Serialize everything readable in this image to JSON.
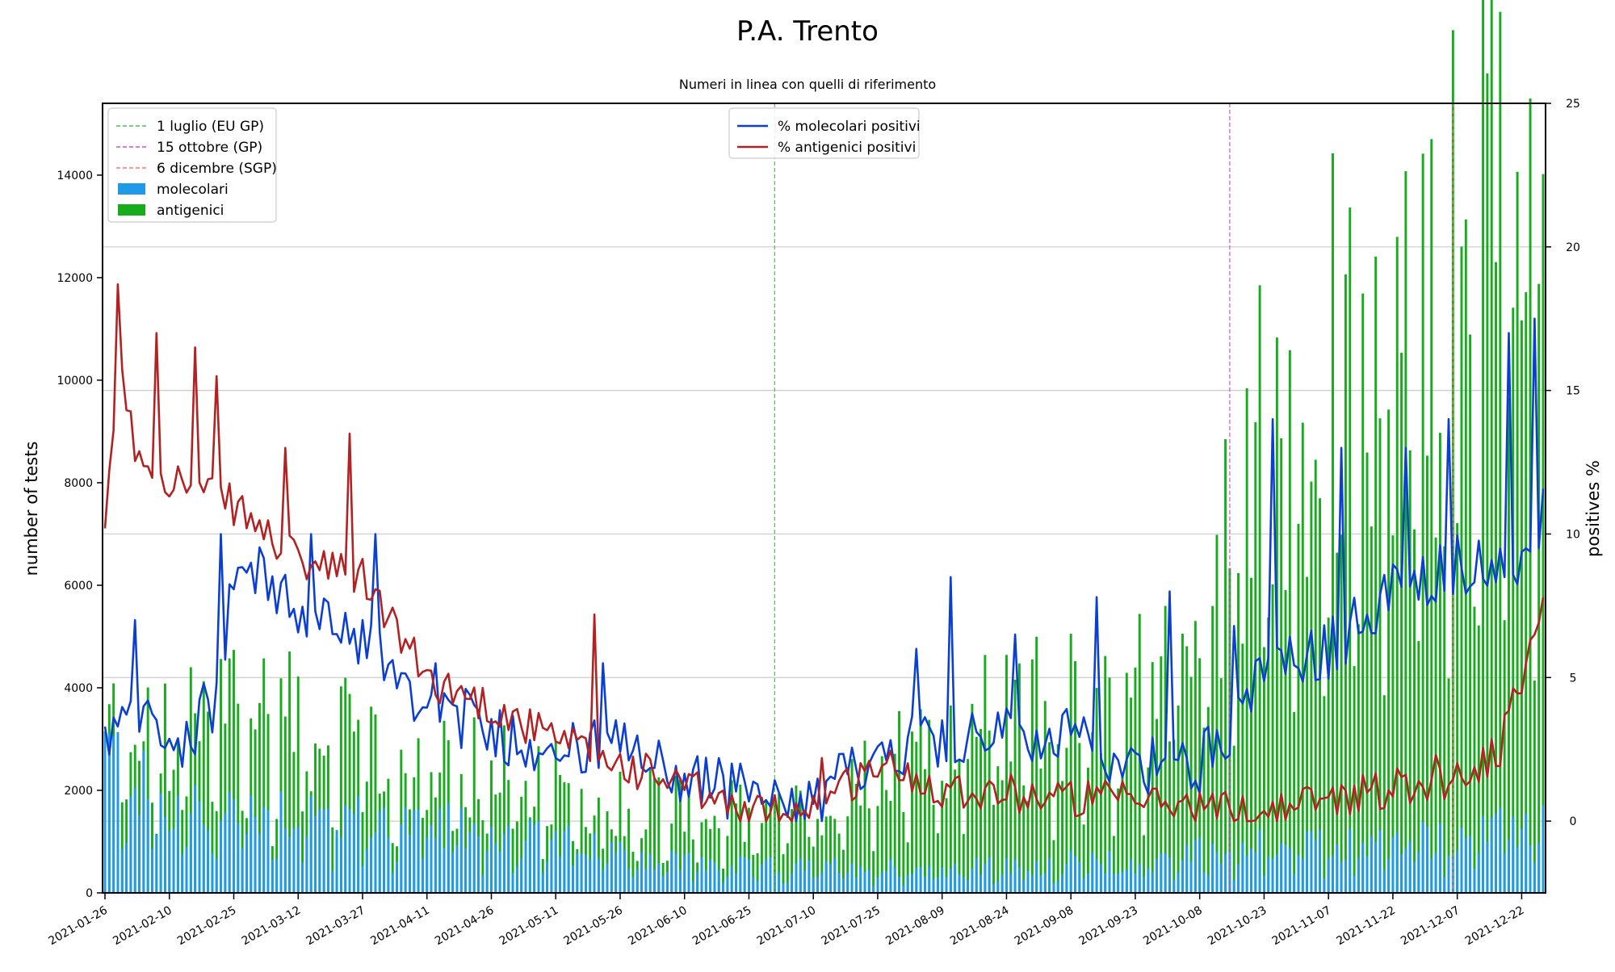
{
  "chart_data": {
    "type": "bar+line",
    "title": "P.A. Trento",
    "subtitle": "Numeri in linea con quelli di riferimento",
    "ylabel": "number of tests",
    "y2label": "positives %",
    "ylim": [
      0,
      15400
    ],
    "y2lim": [
      -2.5,
      25
    ],
    "yticks": [
      "0",
      "2000",
      "4000",
      "6000",
      "8000",
      "10000",
      "12000",
      "14000"
    ],
    "y2ticks": [
      "0",
      "5",
      "10",
      "15",
      "20",
      "25"
    ],
    "x_start": "2021-01-26",
    "x_end": "2021-12-27",
    "xticks": [
      "2021-01-26",
      "2021-02-10",
      "2021-02-25",
      "2021-03-12",
      "2021-03-27",
      "2021-04-11",
      "2021-04-26",
      "2021-05-11",
      "2021-05-26",
      "2021-06-10",
      "2021-06-25",
      "2021-07-10",
      "2021-07-25",
      "2021-08-09",
      "2021-08-24",
      "2021-09-08",
      "2021-09-23",
      "2021-10-08",
      "2021-10-23",
      "2021-11-07",
      "2021-11-22",
      "2021-12-07",
      "2021-12-22"
    ],
    "grid": "horizontal",
    "legend_left": {
      "placement": "top-left",
      "entries": [
        {
          "label": "1 luglio (EU GP)",
          "kind": "dashed",
          "color": "#55bb55"
        },
        {
          "label": "15 ottobre (GP)",
          "kind": "dashed",
          "color": "#cc55cc"
        },
        {
          "label": "6 dicembre (SGP)",
          "kind": "dashed",
          "color": "#ff7777"
        },
        {
          "label": "molecolari",
          "kind": "patch",
          "color": "#1f9ae8"
        },
        {
          "label": "antigenici",
          "kind": "patch",
          "color": "#16ac1c"
        }
      ]
    },
    "legend_center": {
      "placement": "top-center",
      "entries": [
        {
          "label": "% molecolari positivi",
          "kind": "line",
          "color": "#0b3fd1"
        },
        {
          "label": "% antigenici positivi",
          "kind": "line",
          "color": "#b22222"
        }
      ]
    },
    "vlines": [
      {
        "date": "2021-07-01",
        "color": "#55bb55"
      },
      {
        "date": "2021-10-15",
        "color": "#cc55cc"
      },
      {
        "date": "2021-12-06",
        "color": "#ff7777"
      }
    ],
    "colors": {
      "molecolari": "#1f9ae8",
      "antigenici": "#16ac1c",
      "mol_pos": "#0b3fd1",
      "ant_pos": "#b22222"
    },
    "series_anchors": {
      "molecolari_tests": [
        [
          "2021-01-26",
          2800
        ],
        [
          "2021-02-10",
          1500
        ],
        [
          "2021-02-25",
          1700
        ],
        [
          "2021-03-12",
          1600
        ],
        [
          "2021-03-27",
          1400
        ],
        [
          "2021-04-11",
          1300
        ],
        [
          "2021-04-26",
          1200
        ],
        [
          "2021-05-11",
          1000
        ],
        [
          "2021-05-26",
          800
        ],
        [
          "2021-06-10",
          600
        ],
        [
          "2021-06-25",
          500
        ],
        [
          "2021-07-10",
          500
        ],
        [
          "2021-07-25",
          500
        ],
        [
          "2021-08-09",
          500
        ],
        [
          "2021-08-24",
          500
        ],
        [
          "2021-09-08",
          600
        ],
        [
          "2021-09-23",
          600
        ],
        [
          "2021-10-08",
          800
        ],
        [
          "2021-10-23",
          900
        ],
        [
          "2021-11-07",
          900
        ],
        [
          "2021-11-22",
          1000
        ],
        [
          "2021-12-07",
          1100
        ],
        [
          "2021-12-22",
          1300
        ],
        [
          "2021-12-27",
          1500
        ]
      ],
      "antigenici_tests": [
        [
          "2021-01-26",
          3300
        ],
        [
          "2021-02-10",
          3000
        ],
        [
          "2021-02-25",
          3700
        ],
        [
          "2021-03-12",
          3600
        ],
        [
          "2021-03-27",
          2800
        ],
        [
          "2021-04-11",
          2400
        ],
        [
          "2021-04-26",
          2500
        ],
        [
          "2021-05-11",
          2300
        ],
        [
          "2021-05-26",
          1900
        ],
        [
          "2021-06-10",
          1800
        ],
        [
          "2021-06-25",
          1500
        ],
        [
          "2021-07-10",
          1700
        ],
        [
          "2021-07-25",
          2500
        ],
        [
          "2021-08-09",
          3000
        ],
        [
          "2021-08-24",
          3800
        ],
        [
          "2021-09-08",
          3700
        ],
        [
          "2021-09-23",
          4000
        ],
        [
          "2021-10-08",
          5500
        ],
        [
          "2021-10-23",
          9000
        ],
        [
          "2021-11-07",
          10500
        ],
        [
          "2021-11-22",
          11500
        ],
        [
          "2021-12-07",
          12500
        ],
        [
          "2021-12-22",
          14000
        ],
        [
          "2021-12-27",
          14600
        ]
      ],
      "molecolari_pos_pct": [
        [
          "2021-01-26",
          3
        ],
        [
          "2021-01-31",
          3.2
        ],
        [
          "2021-02-05",
          3.5
        ],
        [
          "2021-02-10",
          2.5
        ],
        [
          "2021-02-20",
          4
        ],
        [
          "2021-02-25",
          8.5
        ],
        [
          "2021-03-05",
          8.5
        ],
        [
          "2021-03-12",
          7
        ],
        [
          "2021-03-27",
          6.5
        ],
        [
          "2021-04-11",
          4
        ],
        [
          "2021-04-26",
          3.2
        ],
        [
          "2021-05-11",
          2.5
        ],
        [
          "2021-05-26",
          2.5
        ],
        [
          "2021-06-10",
          1.5
        ],
        [
          "2021-06-25",
          1
        ],
        [
          "2021-07-05",
          0.2
        ],
        [
          "2021-07-10",
          0.5
        ],
        [
          "2021-07-25",
          2.5
        ],
        [
          "2021-08-09",
          3
        ],
        [
          "2021-08-24",
          3
        ],
        [
          "2021-09-08",
          2.8
        ],
        [
          "2021-09-23",
          2
        ],
        [
          "2021-10-08",
          2
        ],
        [
          "2021-10-23",
          5
        ],
        [
          "2021-11-07",
          6
        ],
        [
          "2021-11-22",
          8
        ],
        [
          "2021-12-07",
          9
        ],
        [
          "2021-12-22",
          9
        ],
        [
          "2021-12-27",
          10.5
        ]
      ],
      "antigenici_pos_pct": [
        [
          "2021-01-26",
          9.5
        ],
        [
          "2021-01-29",
          16
        ],
        [
          "2021-02-02",
          13
        ],
        [
          "2021-02-10",
          12
        ],
        [
          "2021-02-25",
          11
        ],
        [
          "2021-03-12",
          9
        ],
        [
          "2021-03-27",
          8.5
        ],
        [
          "2021-04-11",
          5
        ],
        [
          "2021-04-26",
          4
        ],
        [
          "2021-05-11",
          2.8
        ],
        [
          "2021-05-26",
          2
        ],
        [
          "2021-06-10",
          1.2
        ],
        [
          "2021-06-25",
          0.2
        ],
        [
          "2021-07-10",
          0.5
        ],
        [
          "2021-07-25",
          2
        ],
        [
          "2021-08-09",
          1.2
        ],
        [
          "2021-08-24",
          1
        ],
        [
          "2021-09-08",
          0.8
        ],
        [
          "2021-09-23",
          0.7
        ],
        [
          "2021-10-08",
          0.5
        ],
        [
          "2021-10-23",
          0.3
        ],
        [
          "2021-11-07",
          0.8
        ],
        [
          "2021-11-22",
          1.2
        ],
        [
          "2021-12-07",
          1.5
        ],
        [
          "2021-12-17",
          2.5
        ],
        [
          "2021-12-22",
          5
        ],
        [
          "2021-12-27",
          8
        ]
      ],
      "molecolari_pos_spikes": [
        [
          "2021-02-02",
          7
        ],
        [
          "2021-02-22",
          10
        ],
        [
          "2021-03-01",
          9
        ],
        [
          "2021-03-15",
          10
        ],
        [
          "2021-03-30",
          10
        ],
        [
          "2021-04-13",
          5.5
        ],
        [
          "2021-05-22",
          5.5
        ],
        [
          "2021-08-03",
          6
        ],
        [
          "2021-08-11",
          8.5
        ],
        [
          "2021-08-26",
          6.5
        ],
        [
          "2021-09-14",
          7.8
        ],
        [
          "2021-10-01",
          8
        ],
        [
          "2021-10-16",
          6.8
        ],
        [
          "2021-10-25",
          14
        ],
        [
          "2021-11-10",
          13
        ],
        [
          "2021-11-25",
          13
        ],
        [
          "2021-12-05",
          14
        ],
        [
          "2021-12-19",
          17
        ],
        [
          "2021-12-25",
          17.5
        ]
      ],
      "antigenici_pos_spikes": [
        [
          "2021-01-29",
          18.7
        ],
        [
          "2021-02-07",
          17
        ],
        [
          "2021-02-16",
          16.5
        ],
        [
          "2021-02-21",
          15.5
        ],
        [
          "2021-03-09",
          13
        ],
        [
          "2021-03-24",
          13.5
        ],
        [
          "2021-05-20",
          7.2
        ],
        [
          "2021-07-12",
          2.2
        ],
        [
          "2021-12-02",
          2.3
        ]
      ]
    }
  }
}
